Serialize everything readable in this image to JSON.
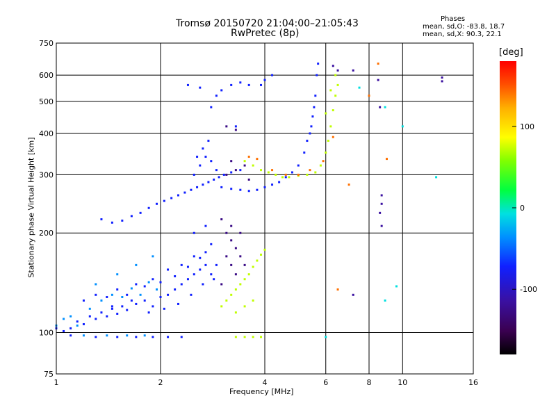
{
  "chart_data": {
    "type": "scatter",
    "title": "Tromsø 20150720 21:04:00–21:05:43",
    "subtitle": "RwPretec (8p)",
    "xlabel": "Frequency [MHz]",
    "ylabel": "Stationary phase Virtual Height [km]",
    "x_scale": "log",
    "y_scale": "log",
    "xlim": [
      1,
      16
    ],
    "ylim": [
      75,
      750
    ],
    "x_ticks": [
      1,
      2,
      4,
      6,
      8,
      10,
      16
    ],
    "y_ticks": [
      75,
      100,
      200,
      300,
      400,
      500,
      600,
      750
    ],
    "grid": true,
    "stats": {
      "title": "Phases",
      "o_mode": "mean, sd,O:  -83.8, 18.7",
      "x_mode": "mean, sd,X:  90.3, 22.1"
    },
    "colorbar": {
      "unit": "[deg]",
      "range": [
        -180,
        180
      ],
      "ticks": [
        100,
        0,
        -100
      ],
      "colormap": "rainbow (black→purple→blue→cyan→green→yellow→orange→red)"
    },
    "series": [
      {
        "name": "",
        "phase": -100,
        "points": [
          [
            1.0,
            103
          ],
          [
            1.05,
            101
          ],
          [
            1.1,
            103
          ],
          [
            1.15,
            108
          ],
          [
            1.2,
            106
          ],
          [
            1.25,
            112
          ],
          [
            1.3,
            110
          ],
          [
            1.35,
            115
          ],
          [
            1.4,
            112
          ],
          [
            1.45,
            118
          ],
          [
            1.5,
            114
          ],
          [
            1.55,
            120
          ],
          [
            1.6,
            117
          ],
          [
            1.7,
            122
          ],
          [
            1.8,
            125
          ],
          [
            1.9,
            120
          ],
          [
            2.0,
            128
          ],
          [
            2.1,
            130
          ],
          [
            2.2,
            135
          ],
          [
            2.3,
            140
          ],
          [
            2.4,
            145
          ],
          [
            2.5,
            150
          ],
          [
            2.6,
            155
          ],
          [
            2.7,
            160
          ],
          [
            2.8,
            150
          ],
          [
            1.3,
            130
          ],
          [
            1.5,
            135
          ],
          [
            1.7,
            140
          ],
          [
            1.9,
            145
          ],
          [
            2.1,
            155
          ],
          [
            2.3,
            160
          ],
          [
            2.5,
            170
          ],
          [
            2.7,
            175
          ],
          [
            2.9,
            160
          ],
          [
            1.2,
            125
          ],
          [
            1.4,
            128
          ],
          [
            1.6,
            130
          ],
          [
            1.8,
            138
          ],
          [
            2.0,
            142
          ],
          [
            2.2,
            148
          ],
          [
            2.4,
            158
          ],
          [
            2.6,
            168
          ],
          [
            2.8,
            185
          ],
          [
            2.5,
            200
          ],
          [
            2.7,
            210
          ],
          [
            1.1,
            98
          ],
          [
            1.3,
            97
          ],
          [
            1.5,
            97
          ],
          [
            1.7,
            97
          ],
          [
            1.9,
            97
          ],
          [
            2.1,
            97
          ],
          [
            2.3,
            97
          ],
          [
            1.45,
            120
          ],
          [
            1.65,
            125
          ],
          [
            1.85,
            115
          ],
          [
            2.05,
            118
          ],
          [
            2.25,
            122
          ],
          [
            2.45,
            130
          ],
          [
            2.65,
            140
          ],
          [
            2.85,
            145
          ]
        ]
      },
      {
        "name": "",
        "phase": -60,
        "points": [
          [
            1.05,
            110
          ],
          [
            1.15,
            105
          ],
          [
            1.25,
            118
          ],
          [
            1.35,
            125
          ],
          [
            1.45,
            130
          ],
          [
            1.55,
            128
          ],
          [
            1.65,
            136
          ],
          [
            1.75,
            130
          ],
          [
            1.85,
            142
          ],
          [
            1.95,
            135
          ],
          [
            1.2,
            98
          ],
          [
            1.4,
            98
          ],
          [
            1.6,
            98
          ],
          [
            1.8,
            98
          ],
          [
            1.0,
            105
          ],
          [
            1.1,
            112
          ],
          [
            1.3,
            140
          ],
          [
            1.5,
            150
          ],
          [
            1.7,
            160
          ],
          [
            1.9,
            170
          ]
        ]
      },
      {
        "name": "",
        "phase": -100,
        "points": [
          [
            1.35,
            220
          ],
          [
            1.45,
            215
          ],
          [
            1.55,
            218
          ],
          [
            1.65,
            225
          ],
          [
            1.75,
            230
          ],
          [
            1.85,
            238
          ],
          [
            1.95,
            245
          ],
          [
            2.05,
            250
          ],
          [
            2.15,
            255
          ],
          [
            2.25,
            260
          ],
          [
            2.35,
            265
          ],
          [
            2.45,
            270
          ],
          [
            2.55,
            275
          ],
          [
            2.65,
            280
          ],
          [
            2.75,
            285
          ],
          [
            2.85,
            290
          ],
          [
            2.95,
            295
          ],
          [
            3.05,
            300
          ],
          [
            3.2,
            305
          ],
          [
            3.4,
            310
          ],
          [
            2.5,
            300
          ],
          [
            2.6,
            320
          ],
          [
            2.7,
            340
          ],
          [
            2.8,
            330
          ],
          [
            2.9,
            310
          ],
          [
            2.55,
            340
          ],
          [
            2.65,
            360
          ],
          [
            2.75,
            380
          ],
          [
            3.0,
            275
          ],
          [
            3.2,
            272
          ],
          [
            3.4,
            270
          ],
          [
            3.6,
            268
          ],
          [
            3.8,
            270
          ],
          [
            4.0,
            275
          ],
          [
            4.2,
            280
          ],
          [
            4.4,
            285
          ],
          [
            4.6,
            295
          ],
          [
            4.8,
            305
          ],
          [
            5.0,
            320
          ],
          [
            5.2,
            350
          ],
          [
            5.4,
            400
          ],
          [
            5.5,
            450
          ],
          [
            5.6,
            520
          ],
          [
            5.65,
            600
          ],
          [
            5.7,
            650
          ],
          [
            5.55,
            480
          ],
          [
            5.45,
            420
          ],
          [
            5.3,
            380
          ],
          [
            2.8,
            480
          ],
          [
            2.9,
            520
          ],
          [
            3.0,
            540
          ],
          [
            3.2,
            560
          ],
          [
            3.4,
            570
          ],
          [
            3.6,
            560
          ],
          [
            3.9,
            560
          ],
          [
            4.0,
            580
          ],
          [
            4.2,
            600
          ],
          [
            2.4,
            560
          ],
          [
            2.6,
            550
          ],
          [
            3.3,
            420
          ]
        ]
      },
      {
        "name": "",
        "phase": -130,
        "points": [
          [
            3.0,
            220
          ],
          [
            3.1,
            200
          ],
          [
            3.2,
            190
          ],
          [
            3.3,
            180
          ],
          [
            3.4,
            170
          ],
          [
            3.5,
            160
          ],
          [
            3.1,
            170
          ],
          [
            3.2,
            160
          ],
          [
            3.3,
            150
          ],
          [
            3.0,
            140
          ],
          [
            3.2,
            210
          ],
          [
            3.4,
            200
          ],
          [
            3.1,
            300
          ],
          [
            3.3,
            310
          ],
          [
            3.5,
            320
          ],
          [
            3.2,
            330
          ],
          [
            3.6,
            290
          ],
          [
            3.1,
            420
          ],
          [
            3.3,
            410
          ]
        ]
      },
      {
        "name": "",
        "phase": 60,
        "points": [
          [
            3.0,
            120
          ],
          [
            3.1,
            125
          ],
          [
            3.2,
            130
          ],
          [
            3.3,
            135
          ],
          [
            3.4,
            140
          ],
          [
            3.5,
            145
          ],
          [
            3.6,
            150
          ],
          [
            3.7,
            158
          ],
          [
            3.8,
            165
          ],
          [
            3.9,
            172
          ],
          [
            4.0,
            178
          ],
          [
            3.3,
            115
          ],
          [
            3.5,
            120
          ],
          [
            3.7,
            125
          ],
          [
            3.3,
            97
          ],
          [
            3.5,
            97
          ],
          [
            3.7,
            97
          ],
          [
            3.9,
            97
          ],
          [
            3.5,
            330
          ],
          [
            3.7,
            320
          ],
          [
            3.9,
            310
          ],
          [
            4.1,
            305
          ],
          [
            4.3,
            300
          ],
          [
            4.5,
            295
          ],
          [
            4.7,
            295
          ],
          [
            5.0,
            298
          ],
          [
            5.3,
            300
          ],
          [
            5.6,
            305
          ],
          [
            5.8,
            320
          ],
          [
            6.0,
            350
          ],
          [
            6.1,
            380
          ],
          [
            6.2,
            420
          ],
          [
            6.3,
            470
          ],
          [
            6.4,
            520
          ],
          [
            6.5,
            560
          ],
          [
            6.4,
            600
          ],
          [
            6.2,
            540
          ],
          [
            6.0,
            460
          ]
        ]
      },
      {
        "name": "",
        "phase": 140,
        "points": [
          [
            3.6,
            340
          ],
          [
            3.8,
            335
          ],
          [
            4.2,
            310
          ],
          [
            4.6,
            300
          ],
          [
            5.0,
            300
          ],
          [
            5.4,
            310
          ],
          [
            5.9,
            330
          ],
          [
            6.3,
            390
          ],
          [
            6.5,
            135
          ],
          [
            7.0,
            280
          ],
          [
            9.0,
            335
          ],
          [
            8.5,
            650
          ],
          [
            8.0,
            520
          ]
        ]
      },
      {
        "name": "",
        "phase": -120,
        "points": [
          [
            6.3,
            640
          ],
          [
            6.5,
            620
          ],
          [
            7.2,
            620
          ],
          [
            8.5,
            580
          ],
          [
            8.6,
            480
          ],
          [
            8.7,
            260
          ],
          [
            8.7,
            245
          ],
          [
            8.6,
            230
          ],
          [
            8.7,
            210
          ],
          [
            7.2,
            130
          ],
          [
            13.0,
            590
          ],
          [
            13.0,
            575
          ]
        ]
      },
      {
        "name": "",
        "phase": -20,
        "points": [
          [
            7.5,
            550
          ],
          [
            10.0,
            420
          ],
          [
            8.9,
            480
          ],
          [
            12.5,
            295
          ],
          [
            9.6,
            138
          ],
          [
            8.9,
            125
          ],
          [
            6.0,
            97
          ]
        ]
      }
    ]
  }
}
